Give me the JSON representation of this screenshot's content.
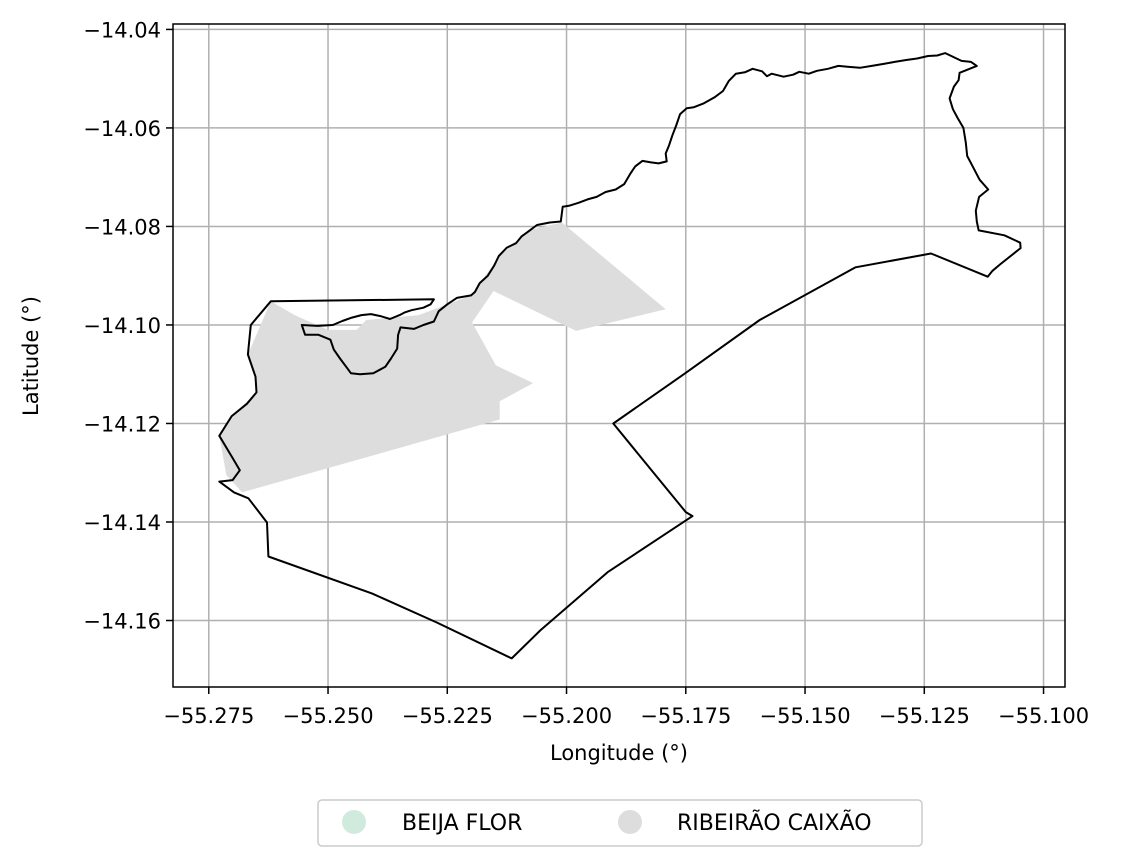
{
  "chart_data": {
    "type": "map",
    "xlabel": "Longitude (°)",
    "ylabel": "Latitude (°)",
    "xlim": [
      -55.2825,
      -55.0955
    ],
    "ylim": [
      -14.1735,
      -14.0389
    ],
    "x_ticks": [
      -55.275,
      -55.25,
      -55.225,
      -55.2,
      -55.175,
      -55.15,
      -55.125,
      -55.1
    ],
    "x_tick_labels": [
      "−55.275",
      "−55.250",
      "−55.225",
      "−55.200",
      "−55.175",
      "−55.150",
      "−55.125",
      "−55.100"
    ],
    "y_ticks": [
      -14.04,
      -14.06,
      -14.08,
      -14.1,
      -14.12,
      -14.14,
      -14.16
    ],
    "y_tick_labels": [
      "−14.04",
      "−14.06",
      "−14.08",
      "−14.10",
      "−14.12",
      "−14.14",
      "−14.16"
    ],
    "grid": true,
    "legend_position": "bottom-center",
    "legend": [
      {
        "name": "BEIJA FLOR",
        "color": "#d0ebdd"
      },
      {
        "name": "RIBEIRÃO CAIXÃO",
        "color": "#dddddd"
      }
    ],
    "boundary": {
      "stroke": "#000000",
      "coordinates": [
        [
          -55.2728,
          -14.1318
        ],
        [
          -55.2697,
          -14.134
        ],
        [
          -55.2667,
          -14.1352
        ],
        [
          -55.2628,
          -14.1401
        ],
        [
          -55.2625,
          -14.147
        ],
        [
          -55.2408,
          -14.1545
        ],
        [
          -55.2272,
          -14.1604
        ],
        [
          -55.2115,
          -14.1677
        ],
        [
          -55.2055,
          -14.162
        ],
        [
          -55.1914,
          -14.1502
        ],
        [
          -55.1736,
          -14.1388
        ],
        [
          -55.175,
          -14.138
        ],
        [
          -55.1902,
          -14.12
        ],
        [
          -55.1751,
          -14.1098
        ],
        [
          -55.1595,
          -14.099
        ],
        [
          -55.1394,
          -14.0883
        ],
        [
          -55.1236,
          -14.0855
        ],
        [
          -55.1117,
          -14.0902
        ],
        [
          -55.1107,
          -14.089
        ],
        [
          -55.1091,
          -14.0877
        ],
        [
          -55.1048,
          -14.0844
        ],
        [
          -55.1049,
          -14.0833
        ],
        [
          -55.1082,
          -14.0818
        ],
        [
          -55.1136,
          -14.0808
        ],
        [
          -55.114,
          -14.079
        ],
        [
          -55.1142,
          -14.0768
        ],
        [
          -55.1135,
          -14.074
        ],
        [
          -55.1116,
          -14.0725
        ],
        [
          -55.1134,
          -14.0705
        ],
        [
          -55.1148,
          -14.0679
        ],
        [
          -55.116,
          -14.0657
        ],
        [
          -55.1163,
          -14.063
        ],
        [
          -55.1168,
          -14.06
        ],
        [
          -55.118,
          -14.058
        ],
        [
          -55.119,
          -14.0562
        ],
        [
          -55.1197,
          -14.054
        ],
        [
          -55.1188,
          -14.0516
        ],
        [
          -55.1178,
          -14.0503
        ],
        [
          -55.1176,
          -14.0488
        ],
        [
          -55.114,
          -14.0474
        ],
        [
          -55.1152,
          -14.0466
        ],
        [
          -55.1172,
          -14.0464
        ],
        [
          -55.1189,
          -14.0456
        ],
        [
          -55.1206,
          -14.0448
        ],
        [
          -55.1223,
          -14.0453
        ],
        [
          -55.1242,
          -14.0454
        ],
        [
          -55.1265,
          -14.0459
        ],
        [
          -55.1288,
          -14.0462
        ],
        [
          -55.1312,
          -14.0466
        ],
        [
          -55.1335,
          -14.047
        ],
        [
          -55.136,
          -14.0474
        ],
        [
          -55.1385,
          -14.0478
        ],
        [
          -55.1408,
          -14.0476
        ],
        [
          -55.143,
          -14.0474
        ],
        [
          -55.1452,
          -14.048
        ],
        [
          -55.1475,
          -14.0484
        ],
        [
          -55.1492,
          -14.049
        ],
        [
          -55.1512,
          -14.0486
        ],
        [
          -55.1525,
          -14.0492
        ],
        [
          -55.1545,
          -14.0496
        ],
        [
          -55.157,
          -14.049
        ],
        [
          -55.158,
          -14.0495
        ],
        [
          -55.159,
          -14.0485
        ],
        [
          -55.161,
          -14.048
        ],
        [
          -55.1626,
          -14.0487
        ],
        [
          -55.1645,
          -14.049
        ],
        [
          -55.166,
          -14.0505
        ],
        [
          -55.1672,
          -14.0525
        ],
        [
          -55.169,
          -14.0538
        ],
        [
          -55.1712,
          -14.055
        ],
        [
          -55.1733,
          -14.0558
        ],
        [
          -55.1748,
          -14.056
        ],
        [
          -55.1762,
          -14.0572
        ],
        [
          -55.177,
          -14.0595
        ],
        [
          -55.1778,
          -14.0615
        ],
        [
          -55.1785,
          -14.0635
        ],
        [
          -55.1792,
          -14.0652
        ],
        [
          -55.179,
          -14.0668
        ],
        [
          -55.1807,
          -14.0672
        ],
        [
          -55.1823,
          -14.067
        ],
        [
          -55.1841,
          -14.0667
        ],
        [
          -55.1856,
          -14.0678
        ],
        [
          -55.1867,
          -14.0694
        ],
        [
          -55.1879,
          -14.0714
        ],
        [
          -55.1897,
          -14.0725
        ],
        [
          -55.1918,
          -14.073
        ],
        [
          -55.1937,
          -14.074
        ],
        [
          -55.1956,
          -14.0745
        ],
        [
          -55.1975,
          -14.0752
        ],
        [
          -55.1995,
          -14.0758
        ],
        [
          -55.2008,
          -14.076
        ],
        [
          -55.2012,
          -14.079
        ],
        [
          -55.2035,
          -14.0792
        ],
        [
          -55.2062,
          -14.0797
        ],
        [
          -55.208,
          -14.081
        ],
        [
          -55.2094,
          -14.082
        ],
        [
          -55.2106,
          -14.0834
        ],
        [
          -55.2125,
          -14.0843
        ],
        [
          -55.2142,
          -14.086
        ],
        [
          -55.2152,
          -14.088
        ],
        [
          -55.2165,
          -14.09
        ],
        [
          -55.2182,
          -14.0915
        ],
        [
          -55.2192,
          -14.0933
        ],
        [
          -55.22,
          -14.094
        ],
        [
          -55.223,
          -14.0945
        ],
        [
          -55.225,
          -14.0958
        ],
        [
          -55.2268,
          -14.0972
        ],
        [
          -55.2278,
          -14.0993
        ],
        [
          -55.23,
          -14.1
        ],
        [
          -55.232,
          -14.1008
        ],
        [
          -55.2348,
          -14.1005
        ],
        [
          -55.2353,
          -14.102
        ],
        [
          -55.2355,
          -14.1048
        ],
        [
          -55.2368,
          -14.1068
        ],
        [
          -55.238,
          -14.1085
        ],
        [
          -55.2405,
          -14.1098
        ],
        [
          -55.2433,
          -14.11
        ],
        [
          -55.2452,
          -14.1098
        ],
        [
          -55.2462,
          -14.1085
        ],
        [
          -55.2475,
          -14.1068
        ],
        [
          -55.2488,
          -14.105
        ],
        [
          -55.2495,
          -14.103
        ],
        [
          -55.252,
          -14.102
        ],
        [
          -55.2548,
          -14.102
        ],
        [
          -55.2555,
          -14.1
        ],
        [
          -55.2522,
          -14.1002
        ],
        [
          -55.249,
          -14.1
        ],
        [
          -55.247,
          -14.0992
        ],
        [
          -55.245,
          -14.0985
        ],
        [
          -55.243,
          -14.098
        ],
        [
          -55.241,
          -14.0978
        ],
        [
          -55.239,
          -14.0982
        ],
        [
          -55.237,
          -14.0988
        ],
        [
          -55.235,
          -14.098
        ],
        [
          -55.234,
          -14.0975
        ],
        [
          -55.2325,
          -14.097
        ],
        [
          -55.23,
          -14.0965
        ],
        [
          -55.2285,
          -14.0958
        ],
        [
          -55.2278,
          -14.0948
        ],
        [
          -55.262,
          -14.0952
        ],
        [
          -55.2662,
          -14.1
        ],
        [
          -55.2668,
          -14.106
        ],
        [
          -55.2652,
          -14.1105
        ],
        [
          -55.265,
          -14.1137
        ],
        [
          -55.267,
          -14.116
        ],
        [
          -55.2702,
          -14.1185
        ],
        [
          -55.2728,
          -14.1225
        ],
        [
          -55.27,
          -14.127
        ],
        [
          -55.2685,
          -14.1295
        ],
        [
          -55.27,
          -14.1315
        ],
        [
          -55.2728,
          -14.1318
        ]
      ]
    },
    "regions": [
      {
        "name": "RIBEIRÃO CAIXÃO",
        "color": "#dddddd",
        "coordinates": [
          [
            -55.268,
            -14.134
          ],
          [
            -55.2713,
            -14.1305
          ],
          [
            -55.2728,
            -14.1225
          ],
          [
            -55.2702,
            -14.1185
          ],
          [
            -55.265,
            -14.1137
          ],
          [
            -55.2652,
            -14.1105
          ],
          [
            -55.2668,
            -14.106
          ],
          [
            -55.262,
            -14.0952
          ],
          [
            -55.257,
            -14.098
          ],
          [
            -55.25,
            -14.101
          ],
          [
            -55.244,
            -14.101
          ],
          [
            -55.242,
            -14.099
          ],
          [
            -55.231,
            -14.098
          ],
          [
            -55.22,
            -14.094
          ],
          [
            -55.214,
            -14.086
          ],
          [
            -55.208,
            -14.0808
          ],
          [
            -55.201,
            -14.0792
          ],
          [
            -55.1792,
            -14.0968
          ],
          [
            -55.198,
            -14.1012
          ],
          [
            -55.2153,
            -14.0931
          ],
          [
            -55.2198,
            -14.0995
          ],
          [
            -55.2148,
            -14.1082
          ],
          [
            -55.207,
            -14.1118
          ],
          [
            -55.214,
            -14.1155
          ],
          [
            -55.214,
            -14.1192
          ],
          [
            -55.268,
            -14.134
          ]
        ]
      }
    ]
  }
}
